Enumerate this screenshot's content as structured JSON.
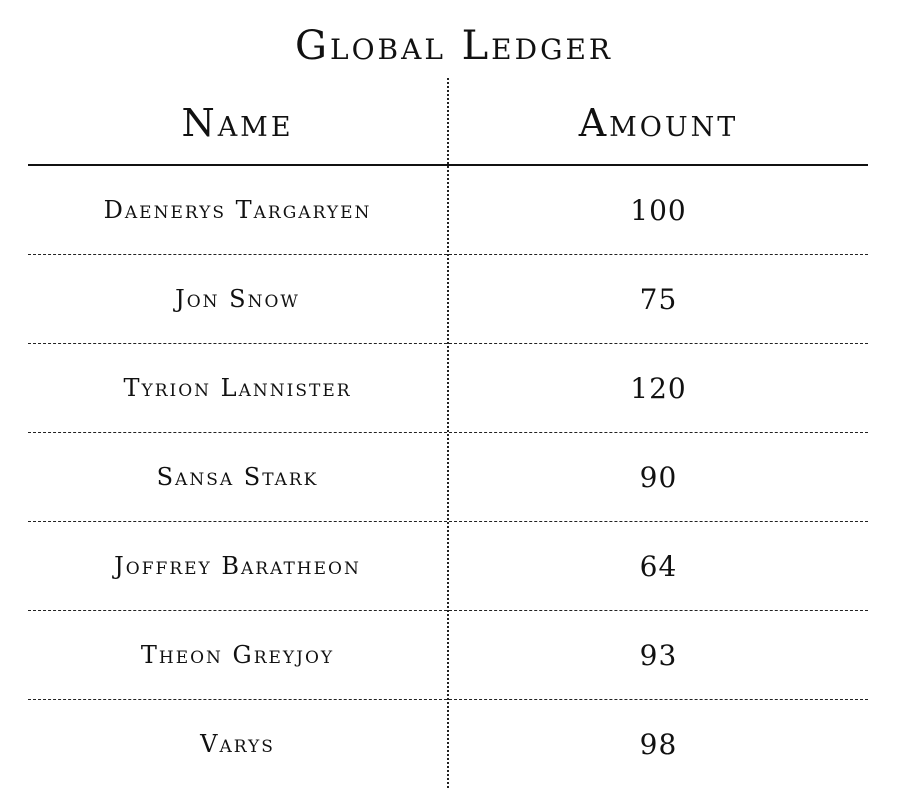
{
  "title": "Global Ledger",
  "columns": {
    "name": "Name",
    "amount": "Amount"
  },
  "rows": [
    {
      "name": "Daenerys Targaryen",
      "amount": "100"
    },
    {
      "name": "Jon Snow",
      "amount": "75"
    },
    {
      "name": "Tyrion Lannister",
      "amount": "120"
    },
    {
      "name": "Sansa Stark",
      "amount": "90"
    },
    {
      "name": "Joffrey Baratheon",
      "amount": "64"
    },
    {
      "name": "Theon Greyjoy",
      "amount": "93"
    },
    {
      "name": "Varys",
      "amount": "98"
    }
  ],
  "colors": {
    "text": "#111111",
    "background": "#ffffff",
    "rule": "#222222"
  }
}
